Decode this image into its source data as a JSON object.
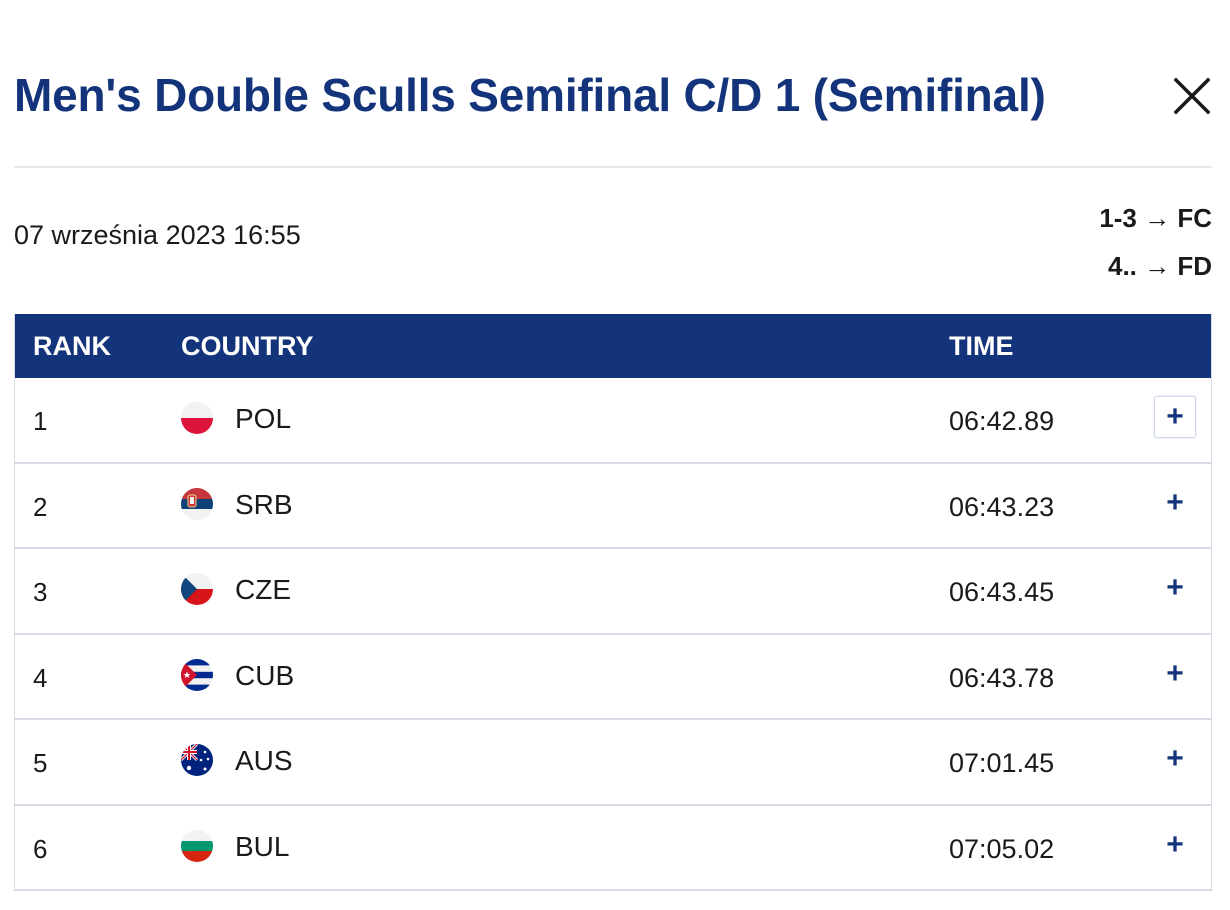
{
  "modal": {
    "title": "Men's Double Sculls Semifinal C/D 1 (Semifinal)",
    "close_icon": "close-icon",
    "date": "07 września 2023 16:55",
    "qualification": [
      "1-3 → FC",
      "4.. → FD"
    ]
  },
  "table": {
    "headers": {
      "rank": "RANK",
      "country": "COUNTRY",
      "time": "TIME"
    },
    "expand_label": "+",
    "rows": [
      {
        "rank": "1",
        "country": "POL",
        "time": "06:42.89",
        "flag_icon": "flag-pol-icon"
      },
      {
        "rank": "2",
        "country": "SRB",
        "time": "06:43.23",
        "flag_icon": "flag-srb-icon"
      },
      {
        "rank": "3",
        "country": "CZE",
        "time": "06:43.45",
        "flag_icon": "flag-cze-icon"
      },
      {
        "rank": "4",
        "country": "CUB",
        "time": "06:43.78",
        "flag_icon": "flag-cub-icon"
      },
      {
        "rank": "5",
        "country": "AUS",
        "time": "07:01.45",
        "flag_icon": "flag-aus-icon"
      },
      {
        "rank": "6",
        "country": "BUL",
        "time": "07:05.02",
        "flag_icon": "flag-bul-icon"
      }
    ]
  },
  "colors": {
    "brand_navy": "#13337a",
    "row_border": "#d6dbe6"
  }
}
